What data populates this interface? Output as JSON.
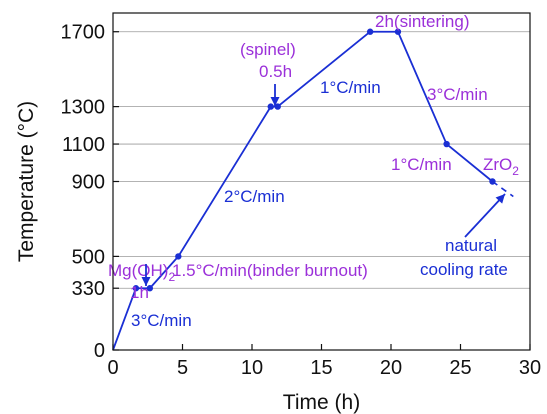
{
  "chart_data": {
    "type": "line",
    "title": "",
    "xlabel": "Time (h)",
    "ylabel": "Temperature (°C)",
    "xlim": [
      0,
      30
    ],
    "ylim": [
      0,
      1800
    ],
    "x_ticks": [
      0,
      5,
      10,
      15,
      20,
      25,
      30
    ],
    "y_ticks": [
      0,
      330,
      500,
      900,
      1100,
      1300,
      1700
    ],
    "grid": "horizontal lines at y tick values",
    "series": [
      {
        "x": [
          0,
          1.65,
          2.65,
          4.7,
          11.35,
          11.85,
          18.5,
          20.5,
          24.0,
          27.3
        ],
        "y": [
          0,
          330,
          330,
          500,
          1300,
          1300,
          1700,
          1700,
          1100,
          900
        ],
        "color": "#1a2fd4"
      }
    ],
    "cooling_tail": {
      "x": [
        27.3,
        28.8
      ],
      "y": [
        900,
        820
      ]
    },
    "annotations": [
      {
        "id": "mgoh2",
        "text": "Mg(OH)",
        "sub": "2",
        "color": "#9b30d9"
      },
      {
        "id": "one-h",
        "text": "1h",
        "color": "#9b30d9"
      },
      {
        "id": "spinel",
        "text": "(spinel)",
        "color": "#9b30d9"
      },
      {
        "id": "half-h",
        "text": "0.5h",
        "color": "#9b30d9"
      },
      {
        "id": "two-h",
        "text": "2h(sintering)",
        "color": "#9b30d9"
      },
      {
        "id": "zro2",
        "text": "ZrO",
        "sub": "2",
        "color": "#9b30d9"
      },
      {
        "id": "rate-3a",
        "text": "3°C/min",
        "color": "#1a2fd4"
      },
      {
        "id": "rate-1-5",
        "text": "1.5°C/min(binder burnout)",
        "color": "#9b30d9"
      },
      {
        "id": "rate-2",
        "text": "2°C/min",
        "color": "#1a2fd4"
      },
      {
        "id": "rate-1a",
        "text": "1°C/min",
        "color": "#1a2fd4"
      },
      {
        "id": "rate-3b",
        "text": "3°C/min",
        "color": "#9b30d9"
      },
      {
        "id": "rate-1b",
        "text": "1°C/min",
        "color": "#9b30d9"
      },
      {
        "id": "natural",
        "text": "natural",
        "color": "#1a2fd4"
      },
      {
        "id": "cooling",
        "text": "cooling rate",
        "color": "#1a2fd4"
      }
    ]
  }
}
